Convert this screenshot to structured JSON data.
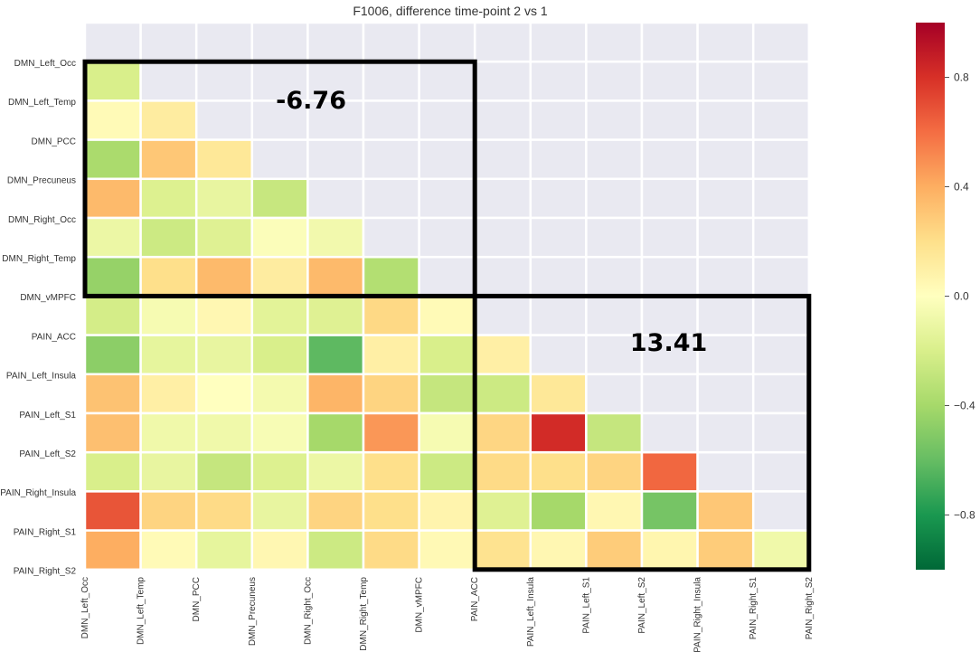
{
  "chart_data": {
    "type": "heatmap",
    "title": "F1006, difference time-point 2 vs 1",
    "labels": [
      "DMN_Left_Occ",
      "DMN_Left_Temp",
      "DMN_PCC",
      "DMN_Precuneus",
      "DMN_Right_Occ",
      "DMN_Right_Temp",
      "DMN_vMPFC",
      "PAIN_ACC",
      "PAIN_Left_Insula",
      "PAIN_Left_S1",
      "PAIN_Left_S2",
      "PAIN_Right_Insula",
      "PAIN_Right_S1",
      "PAIN_Right_S2"
    ],
    "row_labels": [
      "DMN_Left_Occ",
      "DMN_Left_Temp",
      "DMN_PCC",
      "DMN_Precuneus",
      "DMN_Right_Occ",
      "DMN_Right_Temp",
      "DMN_vMPFC",
      "PAIN_ACC",
      "PAIN_Left_Insula",
      "PAIN_Left_S1",
      "PAIN_Left_S2",
      "PAIN_Right_Insula",
      "PAIN_Right_S1",
      "PAIN_Right_S2"
    ],
    "col_labels": [
      "DMN_Left_Occ",
      "DMN_Left_Temp",
      "DMN_PCC",
      "DMN_Precuneus",
      "DMN_Right_Occ",
      "DMN_Right_Temp",
      "DMN_vMPFC",
      "PAIN_ACC",
      "PAIN_Left_Insula",
      "PAIN_Left_S1",
      "PAIN_Left_S2",
      "PAIN_Right_Insula",
      "PAIN_Right_S1",
      "PAIN_Right_S2"
    ],
    "mask": "lower-triangle (diagonal masked)",
    "values": [
      [
        null,
        null,
        null,
        null,
        null,
        null,
        null,
        null,
        null,
        null,
        null,
        null,
        null
      ],
      [
        -0.2,
        null,
        null,
        null,
        null,
        null,
        null,
        null,
        null,
        null,
        null,
        null,
        null
      ],
      [
        0.03,
        0.12,
        null,
        null,
        null,
        null,
        null,
        null,
        null,
        null,
        null,
        null,
        null
      ],
      [
        -0.38,
        0.3,
        0.15,
        null,
        null,
        null,
        null,
        null,
        null,
        null,
        null,
        null,
        null
      ],
      [
        0.35,
        -0.18,
        -0.12,
        -0.27,
        null,
        null,
        null,
        null,
        null,
        null,
        null,
        null,
        null
      ],
      [
        -0.1,
        -0.25,
        -0.17,
        -0.02,
        -0.07,
        null,
        null,
        null,
        null,
        null,
        null,
        null,
        null
      ],
      [
        -0.45,
        0.2,
        0.35,
        0.12,
        0.35,
        -0.35,
        null,
        null,
        null,
        null,
        null,
        null,
        null
      ],
      [
        -0.22,
        -0.05,
        0.05,
        -0.15,
        -0.17,
        0.23,
        0.03,
        null,
        null,
        null,
        null,
        null,
        null
      ],
      [
        -0.48,
        -0.13,
        -0.12,
        -0.2,
        -0.62,
        0.1,
        -0.2,
        0.1,
        null,
        null,
        null,
        null,
        null
      ],
      [
        0.32,
        0.1,
        0.0,
        -0.06,
        0.37,
        0.25,
        -0.28,
        -0.25,
        0.15,
        null,
        null,
        null,
        null
      ],
      [
        0.33,
        -0.08,
        -0.08,
        -0.04,
        -0.4,
        0.47,
        -0.05,
        0.24,
        0.82,
        -0.28,
        null,
        null,
        null
      ],
      [
        -0.2,
        -0.12,
        -0.28,
        -0.18,
        -0.1,
        0.2,
        -0.25,
        0.22,
        0.2,
        0.25,
        0.62,
        null,
        null
      ],
      [
        0.68,
        0.25,
        0.22,
        -0.12,
        0.25,
        0.2,
        0.07,
        -0.17,
        -0.4,
        0.05,
        -0.55,
        0.3,
        null
      ],
      [
        0.4,
        0.03,
        -0.13,
        0.05,
        -0.25,
        0.22,
        0.04,
        0.18,
        0.05,
        0.28,
        0.06,
        0.28,
        -0.08
      ]
    ],
    "vmin": -1,
    "vmax": 1,
    "colormap": "RdYlGn_r",
    "colorbar_ticks": [
      0.8,
      0.4,
      0.0,
      -0.4,
      -0.8
    ],
    "colorbar_tick_labels": [
      "0.8",
      "0.4",
      "0.0",
      "−0.4",
      "−0.8"
    ],
    "mask_color": "#e9e9f1",
    "annotations": [
      {
        "text": "-6.76",
        "block": {
          "rows": [
            1,
            7
          ],
          "cols": [
            0,
            7
          ]
        }
      },
      {
        "text": "13.41",
        "block": {
          "rows": [
            7,
            14
          ],
          "cols": [
            7,
            13
          ]
        }
      }
    ]
  }
}
